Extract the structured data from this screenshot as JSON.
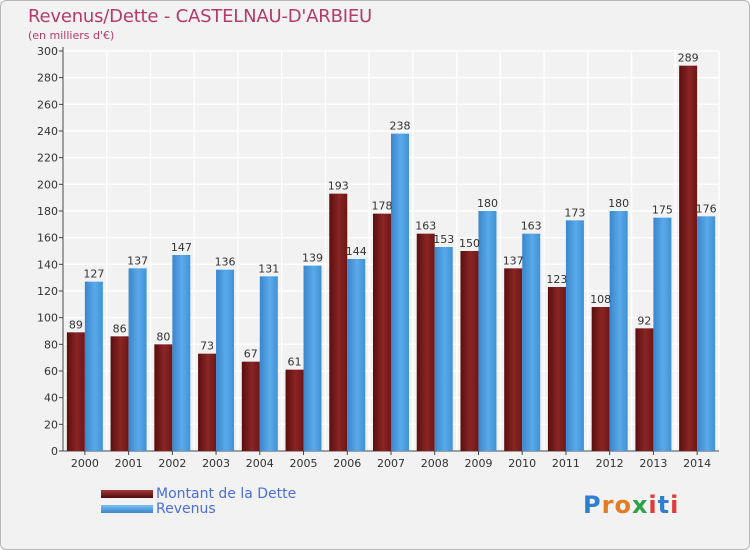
{
  "title": "Revenus/Dette - CASTELNAU-D'ARBIEU",
  "subtitle": "(en milliers d'€)",
  "logo_text": "Proxiti",
  "colors": {
    "dette": "#7a1a1a",
    "revenus": "#4d9ee0",
    "title": "#b33a6b",
    "legend_text": "#4a6fd8",
    "grid": "#ffffff",
    "plot_bg": "#f2f2f2"
  },
  "legend": [
    {
      "label": "Montant de la Dette",
      "color": "#7a1a1a"
    },
    {
      "label": "Revenus",
      "color": "#4d9ee0"
    }
  ],
  "chart_data": {
    "type": "bar",
    "title": "Revenus/Dette - CASTELNAU-D'ARBIEU",
    "subtitle": "(en milliers d'€)",
    "xlabel": "",
    "ylabel": "",
    "categories": [
      "2000",
      "2001",
      "2002",
      "2003",
      "2004",
      "2005",
      "2006",
      "2007",
      "2008",
      "2009",
      "2010",
      "2011",
      "2012",
      "2013",
      "2014"
    ],
    "series": [
      {
        "name": "Montant de la Dette",
        "color": "#7a1a1a",
        "values": [
          89,
          86,
          80,
          73,
          67,
          61,
          193,
          178,
          163,
          150,
          137,
          123,
          108,
          92,
          289
        ]
      },
      {
        "name": "Revenus",
        "color": "#4d9ee0",
        "values": [
          127,
          137,
          147,
          136,
          131,
          139,
          144,
          238,
          153,
          180,
          163,
          173,
          180,
          175,
          176
        ]
      }
    ],
    "ylim": [
      0,
      300
    ],
    "yticks": [
      0,
      20,
      40,
      60,
      80,
      100,
      120,
      140,
      160,
      180,
      200,
      220,
      240,
      260,
      280,
      300
    ],
    "grid": true,
    "legend_position": "bottom-left"
  }
}
